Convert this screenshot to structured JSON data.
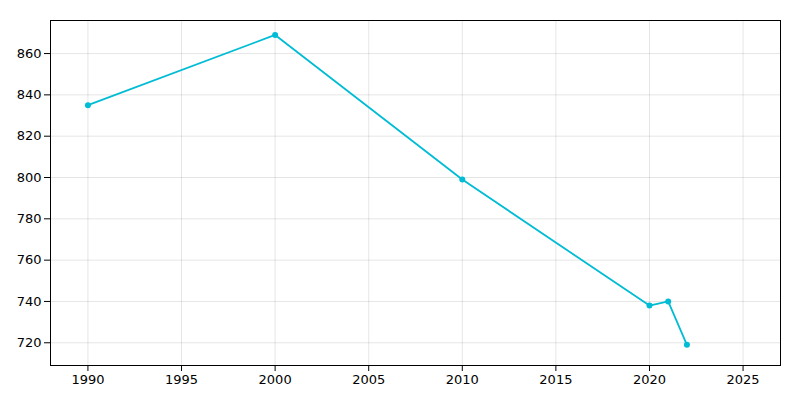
{
  "chart_data": {
    "type": "line",
    "x": [
      1990,
      2000,
      2010,
      2020,
      2021,
      2022
    ],
    "values": [
      835,
      869,
      799,
      738,
      740,
      719
    ],
    "color": "#00bcd4",
    "marker": "circle",
    "xlim": [
      1988,
      2027
    ],
    "ylim": [
      709,
      876
    ],
    "xticks": [
      1990,
      1995,
      2000,
      2005,
      2010,
      2015,
      2020,
      2025
    ],
    "yticks": [
      720,
      740,
      760,
      780,
      800,
      820,
      840,
      860
    ],
    "grid": true
  }
}
